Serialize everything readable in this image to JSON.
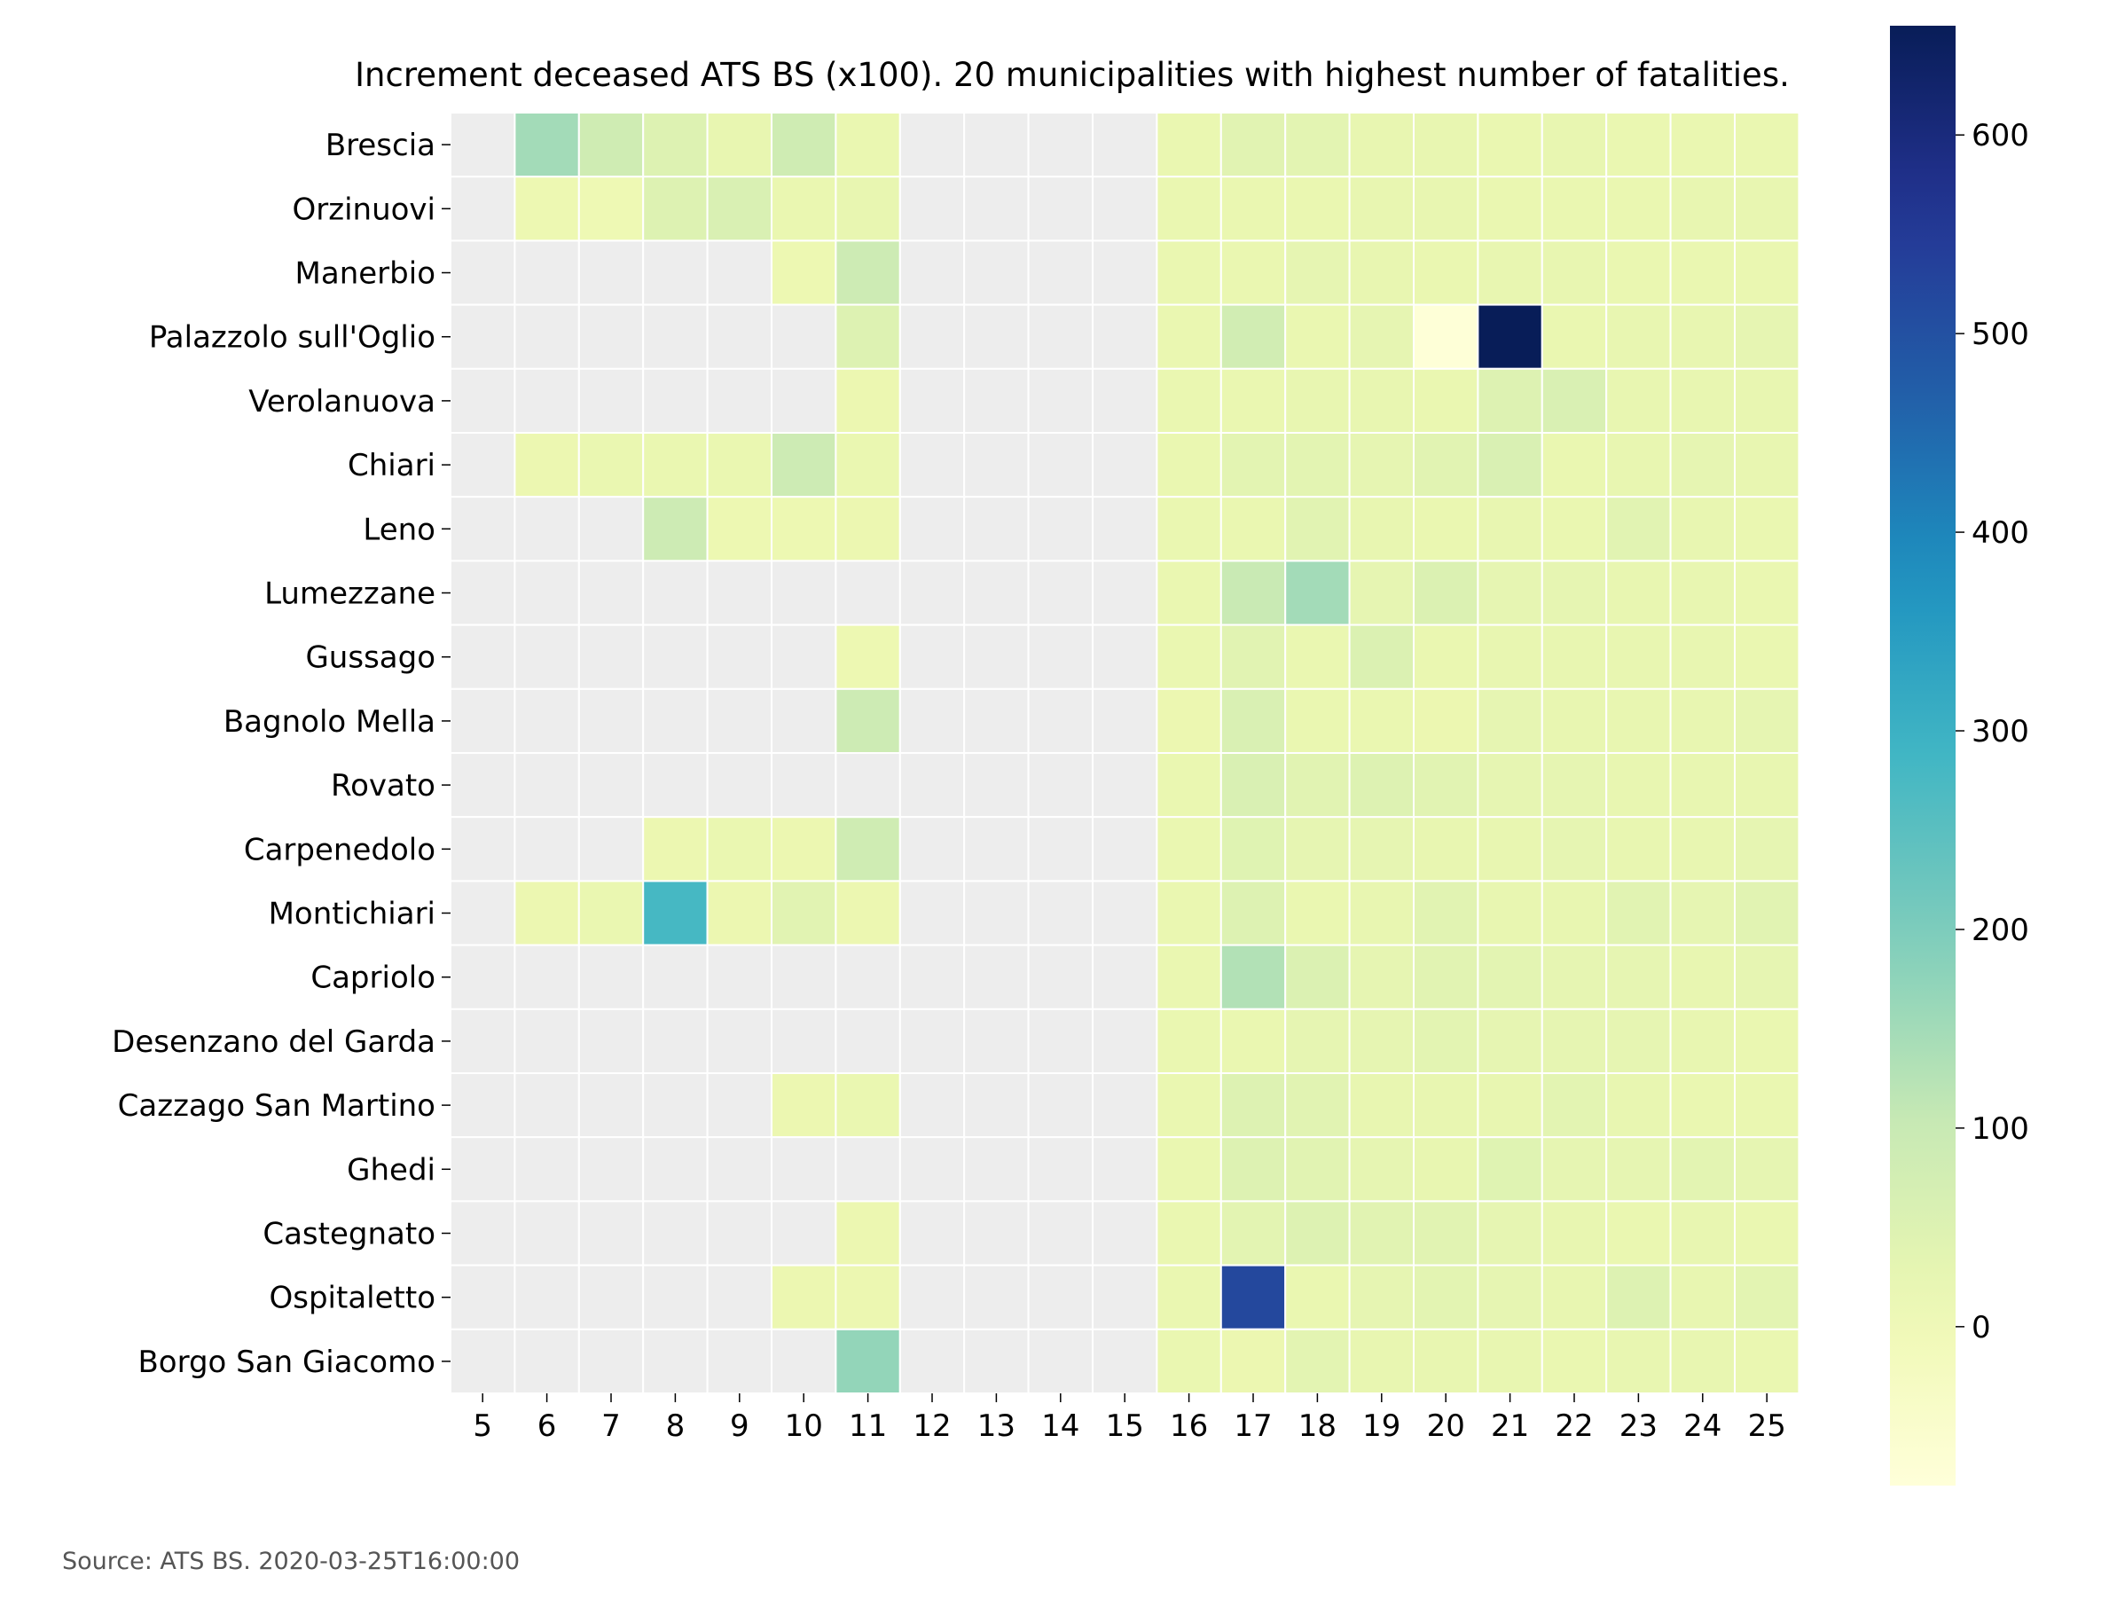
{
  "chart_data": {
    "type": "heatmap",
    "title": "Increment deceased ATS BS (x100). 20 municipalities with highest number of fatalities.",
    "xlabel": "",
    "ylabel": "",
    "colormap": "YlGnBu",
    "missing_color": "#ededed",
    "color_range": [
      -80,
      655
    ],
    "colorbar_ticks": [
      0,
      100,
      200,
      300,
      400,
      500,
      600
    ],
    "x": [
      5,
      6,
      7,
      8,
      9,
      10,
      11,
      12,
      13,
      14,
      15,
      16,
      17,
      18,
      19,
      20,
      21,
      22,
      23,
      24,
      25
    ],
    "rows": [
      "Brescia",
      "Orzinuovi",
      "Manerbio",
      "Palazzolo sull'Oglio",
      "Verolanuova",
      "Chiari",
      "Leno",
      "Lumezzane",
      "Gussago",
      "Bagnolo Mella",
      "Rovato",
      "Carpenedolo",
      "Montichiari",
      "Capriolo",
      "Desenzano del Garda",
      "Cazzago San Martino",
      "Ghedi",
      "Castegnato",
      "Ospitaletto",
      "Borgo San Giacomo"
    ],
    "values": [
      [
        null,
        150,
        85,
        50,
        25,
        85,
        20,
        null,
        null,
        null,
        null,
        20,
        40,
        35,
        25,
        25,
        20,
        25,
        20,
        20,
        20
      ],
      [
        null,
        10,
        5,
        50,
        60,
        20,
        25,
        null,
        null,
        null,
        null,
        20,
        20,
        20,
        25,
        25,
        20,
        20,
        20,
        25,
        25
      ],
      [
        null,
        null,
        null,
        null,
        null,
        10,
        90,
        null,
        null,
        null,
        null,
        20,
        20,
        30,
        25,
        20,
        25,
        25,
        20,
        20,
        20
      ],
      [
        null,
        null,
        null,
        null,
        null,
        null,
        50,
        null,
        null,
        null,
        null,
        20,
        80,
        20,
        30,
        -75,
        655,
        20,
        25,
        25,
        30
      ],
      [
        null,
        null,
        null,
        null,
        null,
        null,
        15,
        null,
        null,
        null,
        null,
        20,
        20,
        25,
        25,
        20,
        50,
        60,
        25,
        25,
        25
      ],
      [
        null,
        15,
        20,
        20,
        20,
        90,
        20,
        null,
        null,
        null,
        null,
        20,
        35,
        35,
        30,
        40,
        60,
        20,
        25,
        30,
        25
      ],
      [
        null,
        null,
        null,
        90,
        10,
        10,
        15,
        null,
        null,
        null,
        null,
        20,
        20,
        40,
        25,
        20,
        25,
        20,
        40,
        25,
        20
      ],
      [
        null,
        null,
        null,
        null,
        null,
        null,
        null,
        null,
        null,
        null,
        null,
        20,
        100,
        150,
        30,
        55,
        30,
        30,
        25,
        25,
        20
      ],
      [
        null,
        null,
        null,
        null,
        null,
        null,
        10,
        null,
        null,
        null,
        null,
        20,
        40,
        20,
        55,
        20,
        25,
        25,
        25,
        25,
        20
      ],
      [
        null,
        null,
        null,
        null,
        null,
        null,
        90,
        null,
        null,
        null,
        null,
        15,
        60,
        20,
        20,
        15,
        30,
        25,
        25,
        25,
        30
      ],
      [
        null,
        null,
        null,
        null,
        null,
        null,
        null,
        null,
        null,
        null,
        null,
        20,
        60,
        40,
        50,
        40,
        30,
        30,
        25,
        25,
        25
      ],
      [
        null,
        null,
        null,
        15,
        20,
        15,
        85,
        null,
        null,
        null,
        null,
        20,
        45,
        30,
        30,
        25,
        25,
        30,
        25,
        25,
        30
      ],
      [
        null,
        15,
        20,
        280,
        15,
        40,
        15,
        null,
        null,
        null,
        null,
        20,
        50,
        20,
        25,
        40,
        25,
        25,
        40,
        30,
        40
      ],
      [
        null,
        null,
        null,
        null,
        null,
        null,
        null,
        null,
        null,
        null,
        null,
        20,
        130,
        55,
        30,
        40,
        35,
        30,
        30,
        25,
        30
      ],
      [
        null,
        null,
        null,
        null,
        null,
        null,
        null,
        null,
        null,
        null,
        null,
        20,
        20,
        30,
        30,
        35,
        30,
        30,
        30,
        25,
        20
      ],
      [
        null,
        null,
        null,
        null,
        null,
        15,
        20,
        null,
        null,
        null,
        null,
        20,
        50,
        40,
        25,
        25,
        25,
        35,
        25,
        20,
        20
      ],
      [
        null,
        null,
        null,
        null,
        null,
        null,
        null,
        null,
        null,
        null,
        null,
        20,
        50,
        40,
        30,
        25,
        45,
        30,
        30,
        35,
        30
      ],
      [
        null,
        null,
        null,
        null,
        null,
        null,
        15,
        null,
        null,
        null,
        null,
        20,
        35,
        50,
        40,
        40,
        30,
        25,
        20,
        25,
        20
      ],
      [
        null,
        null,
        null,
        null,
        null,
        15,
        15,
        null,
        null,
        null,
        null,
        20,
        520,
        20,
        30,
        35,
        30,
        25,
        50,
        25,
        35
      ],
      [
        null,
        null,
        null,
        null,
        null,
        null,
        170,
        null,
        null,
        null,
        null,
        20,
        15,
        35,
        25,
        25,
        25,
        20,
        25,
        25,
        20
      ]
    ]
  },
  "source_note": "Source: ATS BS. 2020-03-25T16:00:00"
}
